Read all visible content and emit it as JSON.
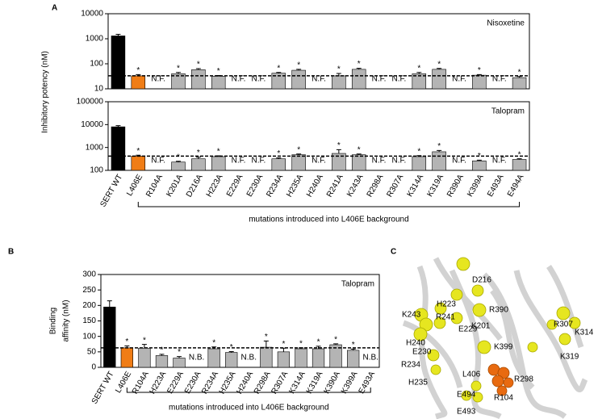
{
  "chart_data": [
    {
      "type": "bar",
      "panel_label": "A",
      "ylabel": "Inhibitory potency (nM)",
      "yscale": "log",
      "categories": [
        "SERT WT",
        "L406E",
        "R104A",
        "K201A",
        "D216A",
        "H223A",
        "E229A",
        "E230A",
        "R234A",
        "H235A",
        "H240A",
        "R241A",
        "K243A",
        "R298A",
        "R307A",
        "K314A",
        "K319A",
        "R390A",
        "K399A",
        "E493A",
        "E494A"
      ],
      "colors": [
        "#000000",
        "#f07d16",
        "#b4b4b4",
        "#b4b4b4",
        "#b4b4b4",
        "#b4b4b4",
        "#b4b4b4",
        "#b4b4b4",
        "#b4b4b4",
        "#b4b4b4",
        "#b4b4b4",
        "#b4b4b4",
        "#b4b4b4",
        "#b4b4b4",
        "#b4b4b4",
        "#b4b4b4",
        "#b4b4b4",
        "#b4b4b4",
        "#b4b4b4",
        "#b4b4b4",
        "#b4b4b4"
      ],
      "group_label": "mutations introduced into L406E background",
      "panels": [
        {
          "title": "Nisoxetine",
          "ylim": [
            10,
            10000
          ],
          "yticks": [
            10,
            100,
            1000,
            10000
          ],
          "reference_line": 33,
          "values": [
            1300,
            33,
            null,
            40,
            58,
            32,
            null,
            null,
            42,
            55,
            null,
            33,
            60,
            null,
            null,
            40,
            60,
            null,
            35,
            null,
            28
          ],
          "errors": [
            200,
            4,
            null,
            5,
            6,
            2,
            null,
            null,
            3,
            5,
            null,
            8,
            6,
            null,
            null,
            5,
            5,
            null,
            2,
            null,
            3
          ],
          "annotations": [
            null,
            "*",
            "N.F.",
            "*",
            "*",
            "*",
            "N.F.",
            "N.F.",
            "*",
            "*",
            "N.F.",
            "*",
            "*",
            "N.F.",
            "N.F.",
            "*",
            "*",
            "N.F.",
            "*",
            "N.F.",
            "*"
          ]
        },
        {
          "title": "Talopram",
          "ylim": [
            100,
            100000
          ],
          "yticks": [
            100,
            1000,
            10000,
            100000
          ],
          "reference_line": 420,
          "values": [
            8000,
            420,
            null,
            230,
            320,
            400,
            null,
            null,
            320,
            480,
            null,
            550,
            480,
            null,
            null,
            400,
            650,
            null,
            260,
            null,
            300
          ],
          "errors": [
            1000,
            40,
            null,
            20,
            60,
            30,
            null,
            null,
            30,
            40,
            null,
            250,
            40,
            null,
            null,
            40,
            90,
            null,
            20,
            null,
            20
          ],
          "annotations": [
            null,
            "*",
            "N.F.",
            "*",
            "*",
            "*",
            "N.F.",
            "N.F.",
            "*",
            "*",
            "N.F.",
            "*",
            "*",
            "N.F.",
            "N.F.",
            "*",
            "*",
            "N.F.",
            "*",
            "N.F.",
            "*"
          ]
        }
      ]
    },
    {
      "type": "bar",
      "panel_label": "B",
      "ylabel": [
        "Binding",
        "affinity (nM)"
      ],
      "yscale": "linear",
      "categories": [
        "SERT WT",
        "L406E",
        "R104A",
        "H223A",
        "E229A",
        "E230A",
        "R234A",
        "H235A",
        "H240A",
        "R298A",
        "R307A",
        "K314A",
        "K319A",
        "K390A",
        "K399A",
        "E493A"
      ],
      "colors": [
        "#000000",
        "#f07d16",
        "#b4b4b4",
        "#b4b4b4",
        "#b4b4b4",
        "#b4b4b4",
        "#b4b4b4",
        "#b4b4b4",
        "#b4b4b4",
        "#b4b4b4",
        "#b4b4b4",
        "#b4b4b4",
        "#b4b4b4",
        "#b4b4b4",
        "#b4b4b4",
        "#b4b4b4"
      ],
      "group_label": "mutations introduced into L406E background",
      "panels": [
        {
          "title": "Talopram",
          "ylim": [
            0,
            300
          ],
          "yticks": [
            0,
            50,
            100,
            150,
            200,
            250,
            300
          ],
          "reference_line": 63,
          "values": [
            195,
            63,
            62,
            38,
            30,
            null,
            60,
            48,
            null,
            65,
            50,
            60,
            60,
            73,
            55,
            null
          ],
          "errors": [
            20,
            6,
            12,
            4,
            5,
            null,
            6,
            3,
            null,
            20,
            12,
            3,
            8,
            3,
            4,
            null
          ],
          "annotations": [
            null,
            "*",
            "*",
            "*",
            "*",
            "N.B.",
            "*",
            "*",
            "N.B.",
            "*",
            "*",
            "*",
            "*",
            "*",
            "*",
            "N.B."
          ]
        }
      ]
    }
  ],
  "structure": {
    "panel_label": "C",
    "residues": [
      "D216",
      "H223",
      "R241",
      "K243",
      "H240",
      "E230",
      "E229",
      "K201",
      "R390",
      "R307",
      "K314",
      "K319",
      "K399",
      "R234",
      "H235",
      "L406",
      "R298",
      "E494",
      "R104",
      "E493"
    ]
  }
}
